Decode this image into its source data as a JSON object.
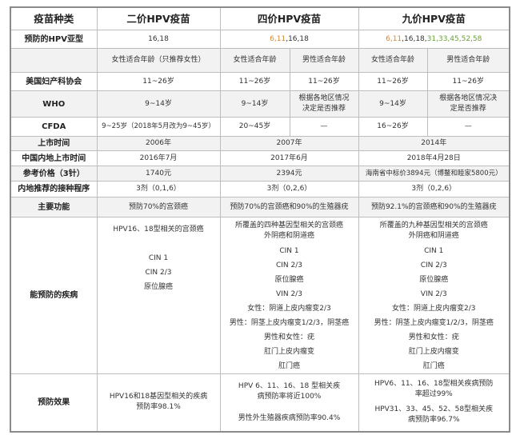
{
  "colors": {
    "orange": "#d4872f",
    "green": "#6a9f3a"
  },
  "header": {
    "label": "疫苗种类",
    "v2": "二价HPV疫苗",
    "v4": "四价HPV疫苗",
    "v9": "九价HPV疫苗"
  },
  "subtype": {
    "label": "预防的HPV亚型",
    "v2": "16,18",
    "v4_orange": "6,11",
    "v4_rest": ",16,18",
    "v9_orange": "6,11",
    "v9_mid": ",16,18,",
    "v9_green": "31,33,45,52,58"
  },
  "age_header": {
    "v2": "女性适合年龄（只推荐女性）",
    "v4_f": "女性适合年龄",
    "v4_m": "男性适合年龄",
    "v9_f": "女性适合年龄",
    "v9_m": "男性适合年龄"
  },
  "acog": {
    "label": "美国妇产科协会",
    "v2": "11~26岁",
    "v4_f": "11~26岁",
    "v4_m": "11~26岁",
    "v9_f": "11~26岁",
    "v9_m": "11~26岁"
  },
  "who": {
    "label": "WHO",
    "v2": "9~14岁",
    "v4_f": "9~14岁",
    "v4_m": "根据各地区情况决定是否推荐",
    "v9_f": "9~14岁",
    "v9_m": "根据各地区情况决定是否推荐"
  },
  "cfda": {
    "label": "CFDA",
    "v2": "9~25岁（2018年5月改为9~45岁）",
    "v4_f": "20~45岁",
    "v4_m": "—",
    "v9_f": "16~26岁",
    "v9_m": "—"
  },
  "launch": {
    "label": "上市时间",
    "v2": "2006年",
    "v4": "2007年",
    "v9": "2014年"
  },
  "china_launch": {
    "label": "中国内地上市时间",
    "v2": "2016年7月",
    "v4": "2017年6月",
    "v9": "2018年4月28日"
  },
  "price": {
    "label": "参考价格（3针）",
    "v2": "1740元",
    "v4": "2394元",
    "v9": "海南省中标价3894元（博鳌和睦家5800元）"
  },
  "schedule": {
    "label": "内地推荐的接种程序",
    "v2": "3剂（0,1,6）",
    "v4": "3剂（0,2,6）",
    "v9": "3剂（0,2,6）"
  },
  "function": {
    "label": "主要功能",
    "v2": "预防70%的宫颈癌",
    "v4": "预防70%的宫颈癌和90%的生殖器疣",
    "v9": "预防92.1%的宫颈癌和90%的生殖器疣"
  },
  "diseases": {
    "label": "能预防的疾病",
    "v2": [
      "HPV16、18型相关的宫颈癌",
      "",
      "CIN 1",
      "CIN 2/3",
      "原位腺癌"
    ],
    "v4": [
      "所覆盖的四种基因型相关的宫颈癌外阴癌和阴道癌",
      "CIN 1",
      "CIN 2/3",
      "原位腺癌",
      "VIN 2/3",
      "女性：阴道上皮内瘤变2/3",
      "男性：阴茎上皮内瘤变1/2/3，阴茎癌",
      "男性和女性：疣",
      "肛门上皮内瘤变",
      "肛门癌"
    ],
    "v9": [
      "所覆盖的九种基因型相关的宫颈癌外阴癌和阴道癌",
      "CIN 1",
      "CIN 2/3",
      "原位腺癌",
      "VIN 2/3",
      "女性：阴道上皮内瘤变2/3",
      "男性：阴茎上皮内瘤变1/2/3，阴茎癌",
      "男性和女性：疣",
      "肛门上皮内瘤变",
      "肛门癌"
    ]
  },
  "efficacy": {
    "label": "预防效果",
    "v2": "HPV16和18基因型相关的疾病预防率98.1%",
    "v4_a": "HPV 6、11、16、18 型相关疾病预防率将近100%",
    "v4_b": "男性外生殖器疾病预防率90.4%",
    "v9_a": "HPV6、11、16、18型相关疾病预防率超过99%",
    "v9_b": "HPV31、33、45、52、58型相关疾病预防率96.7%"
  }
}
